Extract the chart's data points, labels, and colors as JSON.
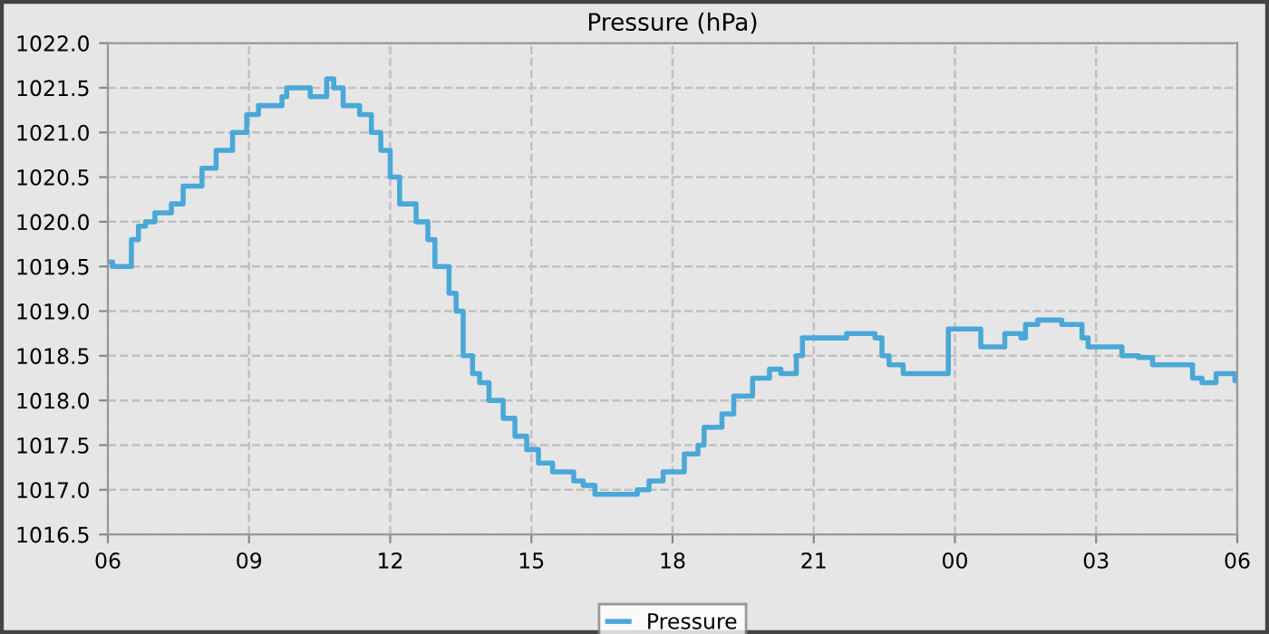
{
  "chart_data": {
    "type": "step",
    "title": "Pressure (hPa)",
    "x": [
      6.0,
      6.1,
      6.4,
      6.5,
      6.65,
      6.8,
      7.0,
      7.35,
      7.6,
      8.0,
      8.3,
      8.65,
      8.95,
      9.2,
      9.7,
      9.8,
      10.3,
      10.65,
      10.8,
      11.0,
      11.35,
      11.6,
      11.8,
      12.0,
      12.2,
      12.55,
      12.8,
      12.95,
      13.25,
      13.4,
      13.55,
      13.75,
      13.9,
      14.1,
      14.4,
      14.65,
      14.9,
      15.15,
      15.45,
      15.9,
      16.1,
      16.35,
      17.25,
      17.5,
      17.8,
      18.25,
      18.54,
      18.67,
      19.05,
      19.3,
      19.7,
      20.06,
      20.3,
      20.63,
      20.76,
      21.7,
      22.3,
      22.45,
      22.6,
      22.9,
      23.86,
      24.55,
      25.06,
      25.4,
      25.5,
      25.76,
      26.27,
      26.7,
      26.83,
      27.55,
      27.9,
      28.2,
      29.05,
      29.25,
      29.55,
      29.95,
      30.0
    ],
    "series": [
      {
        "name": "Pressure",
        "color": "#4aa8d8",
        "values": [
          1019.55,
          1019.5,
          1019.5,
          1019.8,
          1019.95,
          1020.0,
          1020.1,
          1020.2,
          1020.4,
          1020.6,
          1020.8,
          1021.0,
          1021.2,
          1021.3,
          1021.4,
          1021.5,
          1021.4,
          1021.6,
          1021.5,
          1021.3,
          1021.2,
          1021.0,
          1020.8,
          1020.5,
          1020.2,
          1020.0,
          1019.8,
          1019.5,
          1019.2,
          1019.0,
          1018.5,
          1018.3,
          1018.2,
          1018.0,
          1017.8,
          1017.6,
          1017.45,
          1017.3,
          1017.2,
          1017.1,
          1017.05,
          1016.95,
          1017.0,
          1017.1,
          1017.2,
          1017.4,
          1017.5,
          1017.7,
          1017.85,
          1018.05,
          1018.25,
          1018.35,
          1018.3,
          1018.5,
          1018.7,
          1018.75,
          1018.7,
          1018.5,
          1018.4,
          1018.3,
          1018.8,
          1018.6,
          1018.75,
          1018.7,
          1018.85,
          1018.9,
          1018.85,
          1018.7,
          1018.6,
          1018.5,
          1018.48,
          1018.4,
          1018.25,
          1018.2,
          1018.3,
          1018.22,
          1018.22
        ]
      }
    ],
    "xlim": [
      6,
      30
    ],
    "xticks": [
      {
        "value": 6,
        "label": "06"
      },
      {
        "value": 9,
        "label": "09"
      },
      {
        "value": 12,
        "label": "12"
      },
      {
        "value": 15,
        "label": "15"
      },
      {
        "value": 18,
        "label": "18"
      },
      {
        "value": 21,
        "label": "21"
      },
      {
        "value": 24,
        "label": "00"
      },
      {
        "value": 27,
        "label": "03"
      },
      {
        "value": 30,
        "label": "06"
      }
    ],
    "ylim": [
      1016.5,
      1022.0
    ],
    "yticks": [
      {
        "value": 1016.5,
        "label": "1016.5"
      },
      {
        "value": 1017.0,
        "label": "1017.0"
      },
      {
        "value": 1017.5,
        "label": "1017.5"
      },
      {
        "value": 1018.0,
        "label": "1018.0"
      },
      {
        "value": 1018.5,
        "label": "1018.5"
      },
      {
        "value": 1019.0,
        "label": "1019.0"
      },
      {
        "value": 1019.5,
        "label": "1019.5"
      },
      {
        "value": 1020.0,
        "label": "1020.0"
      },
      {
        "value": 1020.5,
        "label": "1020.5"
      },
      {
        "value": 1021.0,
        "label": "1021.0"
      },
      {
        "value": 1021.5,
        "label": "1021.5"
      },
      {
        "value": 1022.0,
        "label": "1022.0"
      }
    ],
    "grid": true,
    "line_style": "solid",
    "legend": "bottom"
  }
}
